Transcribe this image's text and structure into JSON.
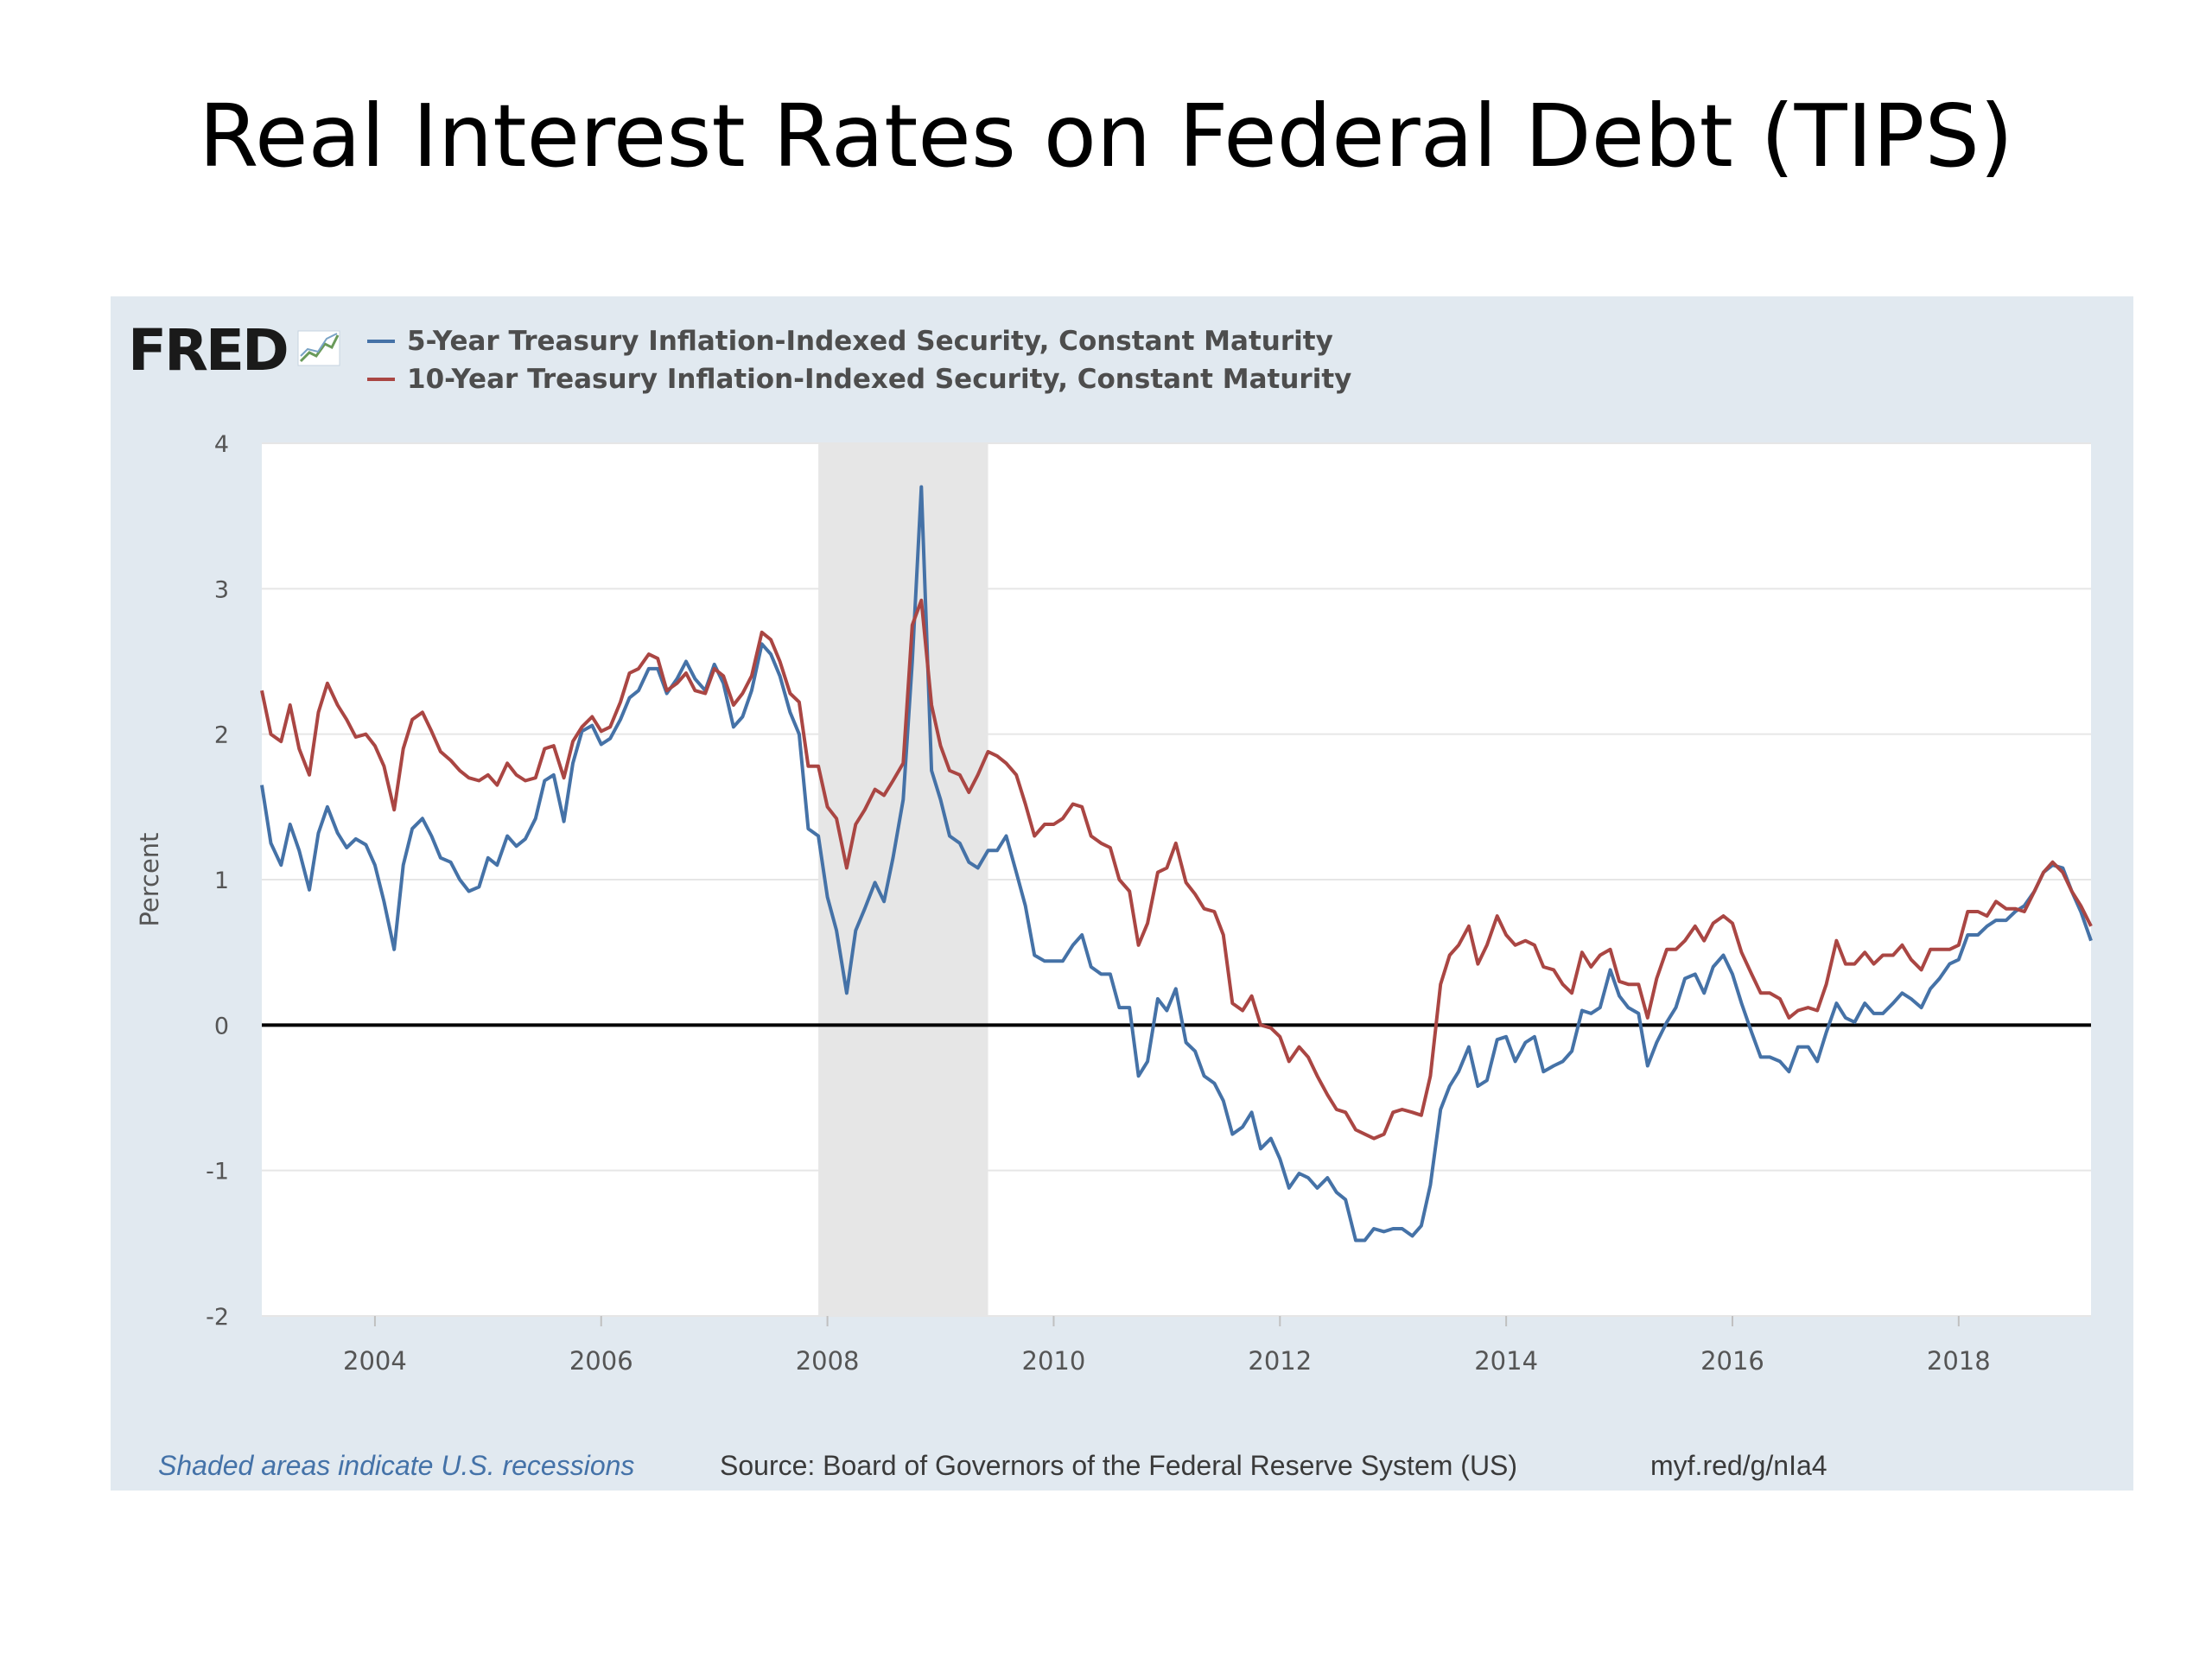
{
  "slide": {
    "title": "Real Interest Rates on Federal Debt (TIPS)"
  },
  "branding": {
    "logo_text": "FRED",
    "logo_mark_icon": "trend-chart-icon"
  },
  "footer": {
    "recession_note": "Shaded areas indicate U.S. recessions",
    "source": "Source: Board of Governors of the Federal Reserve System (US)",
    "short_link": "myf.red/g/nIa4"
  },
  "colors": {
    "series_5yr": "#4572a7",
    "series_10yr": "#aa4643",
    "recession_shade": "#e6e6e6",
    "panel_bg": "#e1e9f0",
    "plot_bg": "#ffffff",
    "zero_line": "#000000",
    "grid": "#e6e6e6"
  },
  "chart_data": {
    "type": "line",
    "title": "",
    "xlabel": "",
    "ylabel": "Percent",
    "xlim": [
      2003.0,
      2019.17
    ],
    "ylim": [
      -2,
      4
    ],
    "yticks": [
      "-2",
      "-1",
      "0",
      "1",
      "2",
      "3",
      "4"
    ],
    "xticks": [
      "2004",
      "2006",
      "2008",
      "2010",
      "2012",
      "2014",
      "2016",
      "2018"
    ],
    "grid": true,
    "reference_line": 0,
    "recessions": [
      [
        2007.92,
        2009.42
      ]
    ],
    "legend_position": "top-left",
    "series": [
      {
        "name": "5-Year Treasury Inflation-Indexed Security, Constant Maturity",
        "color": "#4572a7",
        "x": [
          2003.0,
          2003.08,
          2003.17,
          2003.25,
          2003.33,
          2003.42,
          2003.5,
          2003.58,
          2003.67,
          2003.75,
          2003.83,
          2003.92,
          2004.0,
          2004.08,
          2004.17,
          2004.25,
          2004.33,
          2004.42,
          2004.5,
          2004.58,
          2004.67,
          2004.75,
          2004.83,
          2004.92,
          2005.0,
          2005.08,
          2005.17,
          2005.25,
          2005.33,
          2005.42,
          2005.5,
          2005.58,
          2005.67,
          2005.75,
          2005.83,
          2005.92,
          2006.0,
          2006.08,
          2006.17,
          2006.25,
          2006.33,
          2006.42,
          2006.5,
          2006.58,
          2006.67,
          2006.75,
          2006.83,
          2006.92,
          2007.0,
          2007.08,
          2007.17,
          2007.25,
          2007.33,
          2007.42,
          2007.5,
          2007.58,
          2007.67,
          2007.75,
          2007.83,
          2007.92,
          2008.0,
          2008.08,
          2008.17,
          2008.25,
          2008.33,
          2008.42,
          2008.5,
          2008.58,
          2008.67,
          2008.75,
          2008.83,
          2008.92,
          2009.0,
          2009.08,
          2009.17,
          2009.25,
          2009.33,
          2009.42,
          2009.5,
          2009.58,
          2009.67,
          2009.75,
          2009.83,
          2009.92,
          2010.0,
          2010.08,
          2010.17,
          2010.25,
          2010.33,
          2010.42,
          2010.5,
          2010.58,
          2010.67,
          2010.75,
          2010.83,
          2010.92,
          2011.0,
          2011.08,
          2011.17,
          2011.25,
          2011.33,
          2011.42,
          2011.5,
          2011.58,
          2011.67,
          2011.75,
          2011.83,
          2011.92,
          2012.0,
          2012.08,
          2012.17,
          2012.25,
          2012.33,
          2012.42,
          2012.5,
          2012.58,
          2012.67,
          2012.75,
          2012.83,
          2012.92,
          2013.0,
          2013.08,
          2013.17,
          2013.25,
          2013.33,
          2013.42,
          2013.5,
          2013.58,
          2013.67,
          2013.75,
          2013.83,
          2013.92,
          2014.0,
          2014.08,
          2014.17,
          2014.25,
          2014.33,
          2014.42,
          2014.5,
          2014.58,
          2014.67,
          2014.75,
          2014.83,
          2014.92,
          2015.0,
          2015.08,
          2015.17,
          2015.25,
          2015.33,
          2015.42,
          2015.5,
          2015.58,
          2015.67,
          2015.75,
          2015.83,
          2015.92,
          2016.0,
          2016.08,
          2016.17,
          2016.25,
          2016.33,
          2016.42,
          2016.5,
          2016.58,
          2016.67,
          2016.75,
          2016.83,
          2016.92,
          2017.0,
          2017.08,
          2017.17,
          2017.25,
          2017.33,
          2017.42,
          2017.5,
          2017.58,
          2017.67,
          2017.75,
          2017.83,
          2017.92,
          2018.0,
          2018.08,
          2018.17,
          2018.25,
          2018.33,
          2018.42,
          2018.5,
          2018.58,
          2018.67,
          2018.75,
          2018.83,
          2018.92,
          2019.0,
          2019.08,
          2019.17
        ],
        "values": [
          1.65,
          1.25,
          1.1,
          1.38,
          1.2,
          0.93,
          1.32,
          1.5,
          1.32,
          1.22,
          1.28,
          1.24,
          1.1,
          0.85,
          0.52,
          1.1,
          1.35,
          1.42,
          1.3,
          1.15,
          1.12,
          1.0,
          0.92,
          0.95,
          1.15,
          1.1,
          1.3,
          1.23,
          1.28,
          1.42,
          1.68,
          1.72,
          1.4,
          1.8,
          2.02,
          2.06,
          1.93,
          1.97,
          2.1,
          2.25,
          2.3,
          2.45,
          2.45,
          2.28,
          2.38,
          2.5,
          2.38,
          2.3,
          2.48,
          2.35,
          2.05,
          2.12,
          2.3,
          2.62,
          2.55,
          2.4,
          2.15,
          2.0,
          1.35,
          1.3,
          0.88,
          0.65,
          0.22,
          0.65,
          0.8,
          0.98,
          0.85,
          1.15,
          1.55,
          2.5,
          3.7,
          1.75,
          1.55,
          1.3,
          1.25,
          1.12,
          1.08,
          1.2,
          1.2,
          1.3,
          1.05,
          0.82,
          0.48,
          0.44,
          0.44,
          0.44,
          0.55,
          0.62,
          0.4,
          0.35,
          0.35,
          0.12,
          0.12,
          -0.35,
          -0.25,
          0.18,
          0.1,
          0.25,
          -0.12,
          -0.18,
          -0.35,
          -0.4,
          -0.52,
          -0.75,
          -0.7,
          -0.6,
          -0.85,
          -0.78,
          -0.92,
          -1.12,
          -1.02,
          -1.05,
          -1.12,
          -1.05,
          -1.15,
          -1.2,
          -1.48,
          -1.48,
          -1.4,
          -1.42,
          -1.4,
          -1.4,
          -1.45,
          -1.38,
          -1.1,
          -0.58,
          -0.42,
          -0.32,
          -0.15,
          -0.42,
          -0.38,
          -0.1,
          -0.08,
          -0.25,
          -0.12,
          -0.08,
          -0.32,
          -0.28,
          -0.25,
          -0.18,
          0.1,
          0.08,
          0.12,
          0.38,
          0.2,
          0.12,
          0.08,
          -0.28,
          -0.12,
          0.02,
          0.12,
          0.32,
          0.35,
          0.22,
          0.4,
          0.48,
          0.35,
          0.15,
          -0.05,
          -0.22,
          -0.22,
          -0.25,
          -0.32,
          -0.15,
          -0.15,
          -0.25,
          -0.05,
          0.15,
          0.05,
          0.02,
          0.15,
          0.08,
          0.08,
          0.15,
          0.22,
          0.18,
          0.12,
          0.25,
          0.32,
          0.42,
          0.45,
          0.62,
          0.62,
          0.68,
          0.72,
          0.72,
          0.78,
          0.82,
          0.92,
          1.05,
          1.1,
          1.08,
          0.92,
          0.78,
          0.58
        ]
      },
      {
        "name": "10-Year Treasury Inflation-Indexed Security, Constant Maturity",
        "color": "#aa4643",
        "x": [
          2003.0,
          2003.08,
          2003.17,
          2003.25,
          2003.33,
          2003.42,
          2003.5,
          2003.58,
          2003.67,
          2003.75,
          2003.83,
          2003.92,
          2004.0,
          2004.08,
          2004.17,
          2004.25,
          2004.33,
          2004.42,
          2004.5,
          2004.58,
          2004.67,
          2004.75,
          2004.83,
          2004.92,
          2005.0,
          2005.08,
          2005.17,
          2005.25,
          2005.33,
          2005.42,
          2005.5,
          2005.58,
          2005.67,
          2005.75,
          2005.83,
          2005.92,
          2006.0,
          2006.08,
          2006.17,
          2006.25,
          2006.33,
          2006.42,
          2006.5,
          2006.58,
          2006.67,
          2006.75,
          2006.83,
          2006.92,
          2007.0,
          2007.08,
          2007.17,
          2007.25,
          2007.33,
          2007.42,
          2007.5,
          2007.58,
          2007.67,
          2007.75,
          2007.83,
          2007.92,
          2008.0,
          2008.08,
          2008.17,
          2008.25,
          2008.33,
          2008.42,
          2008.5,
          2008.58,
          2008.67,
          2008.75,
          2008.83,
          2008.92,
          2009.0,
          2009.08,
          2009.17,
          2009.25,
          2009.33,
          2009.42,
          2009.5,
          2009.58,
          2009.67,
          2009.75,
          2009.83,
          2009.92,
          2010.0,
          2010.08,
          2010.17,
          2010.25,
          2010.33,
          2010.42,
          2010.5,
          2010.58,
          2010.67,
          2010.75,
          2010.83,
          2010.92,
          2011.0,
          2011.08,
          2011.17,
          2011.25,
          2011.33,
          2011.42,
          2011.5,
          2011.58,
          2011.67,
          2011.75,
          2011.83,
          2011.92,
          2012.0,
          2012.08,
          2012.17,
          2012.25,
          2012.33,
          2012.42,
          2012.5,
          2012.58,
          2012.67,
          2012.75,
          2012.83,
          2012.92,
          2013.0,
          2013.08,
          2013.17,
          2013.25,
          2013.33,
          2013.42,
          2013.5,
          2013.58,
          2013.67,
          2013.75,
          2013.83,
          2013.92,
          2014.0,
          2014.08,
          2014.17,
          2014.25,
          2014.33,
          2014.42,
          2014.5,
          2014.58,
          2014.67,
          2014.75,
          2014.83,
          2014.92,
          2015.0,
          2015.08,
          2015.17,
          2015.25,
          2015.33,
          2015.42,
          2015.5,
          2015.58,
          2015.67,
          2015.75,
          2015.83,
          2015.92,
          2016.0,
          2016.08,
          2016.17,
          2016.25,
          2016.33,
          2016.42,
          2016.5,
          2016.58,
          2016.67,
          2016.75,
          2016.83,
          2016.92,
          2017.0,
          2017.08,
          2017.17,
          2017.25,
          2017.33,
          2017.42,
          2017.5,
          2017.58,
          2017.67,
          2017.75,
          2017.83,
          2017.92,
          2018.0,
          2018.08,
          2018.17,
          2018.25,
          2018.33,
          2018.42,
          2018.5,
          2018.58,
          2018.67,
          2018.75,
          2018.83,
          2018.92,
          2019.0,
          2019.08,
          2019.17
        ],
        "values": [
          2.3,
          2.0,
          1.95,
          2.2,
          1.9,
          1.72,
          2.15,
          2.35,
          2.2,
          2.1,
          1.98,
          2.0,
          1.92,
          1.78,
          1.48,
          1.9,
          2.1,
          2.15,
          2.02,
          1.88,
          1.82,
          1.75,
          1.7,
          1.68,
          1.72,
          1.65,
          1.8,
          1.72,
          1.68,
          1.7,
          1.9,
          1.92,
          1.7,
          1.95,
          2.05,
          2.12,
          2.02,
          2.05,
          2.22,
          2.42,
          2.45,
          2.55,
          2.52,
          2.3,
          2.35,
          2.42,
          2.3,
          2.28,
          2.45,
          2.4,
          2.2,
          2.28,
          2.4,
          2.7,
          2.65,
          2.5,
          2.28,
          2.22,
          1.78,
          1.78,
          1.5,
          1.42,
          1.08,
          1.38,
          1.48,
          1.62,
          1.58,
          1.68,
          1.8,
          2.75,
          2.92,
          2.2,
          1.92,
          1.75,
          1.72,
          1.6,
          1.72,
          1.88,
          1.85,
          1.8,
          1.72,
          1.52,
          1.3,
          1.38,
          1.38,
          1.42,
          1.52,
          1.5,
          1.3,
          1.25,
          1.22,
          1.0,
          0.92,
          0.55,
          0.7,
          1.05,
          1.08,
          1.25,
          0.98,
          0.9,
          0.8,
          0.78,
          0.62,
          0.15,
          0.1,
          0.2,
          0.0,
          -0.02,
          -0.08,
          -0.25,
          -0.15,
          -0.22,
          -0.35,
          -0.48,
          -0.58,
          -0.6,
          -0.72,
          -0.75,
          -0.78,
          -0.75,
          -0.6,
          -0.58,
          -0.6,
          -0.62,
          -0.35,
          0.28,
          0.48,
          0.55,
          0.68,
          0.42,
          0.55,
          0.75,
          0.62,
          0.55,
          0.58,
          0.55,
          0.4,
          0.38,
          0.28,
          0.22,
          0.5,
          0.4,
          0.48,
          0.52,
          0.3,
          0.28,
          0.28,
          0.05,
          0.32,
          0.52,
          0.52,
          0.58,
          0.68,
          0.58,
          0.7,
          0.75,
          0.7,
          0.5,
          0.35,
          0.22,
          0.22,
          0.18,
          0.05,
          0.1,
          0.12,
          0.1,
          0.28,
          0.58,
          0.42,
          0.42,
          0.5,
          0.42,
          0.48,
          0.48,
          0.55,
          0.45,
          0.38,
          0.52,
          0.52,
          0.52,
          0.55,
          0.78,
          0.78,
          0.75,
          0.85,
          0.8,
          0.8,
          0.78,
          0.92,
          1.05,
          1.12,
          1.05,
          0.92,
          0.82,
          0.68
        ]
      }
    ]
  }
}
